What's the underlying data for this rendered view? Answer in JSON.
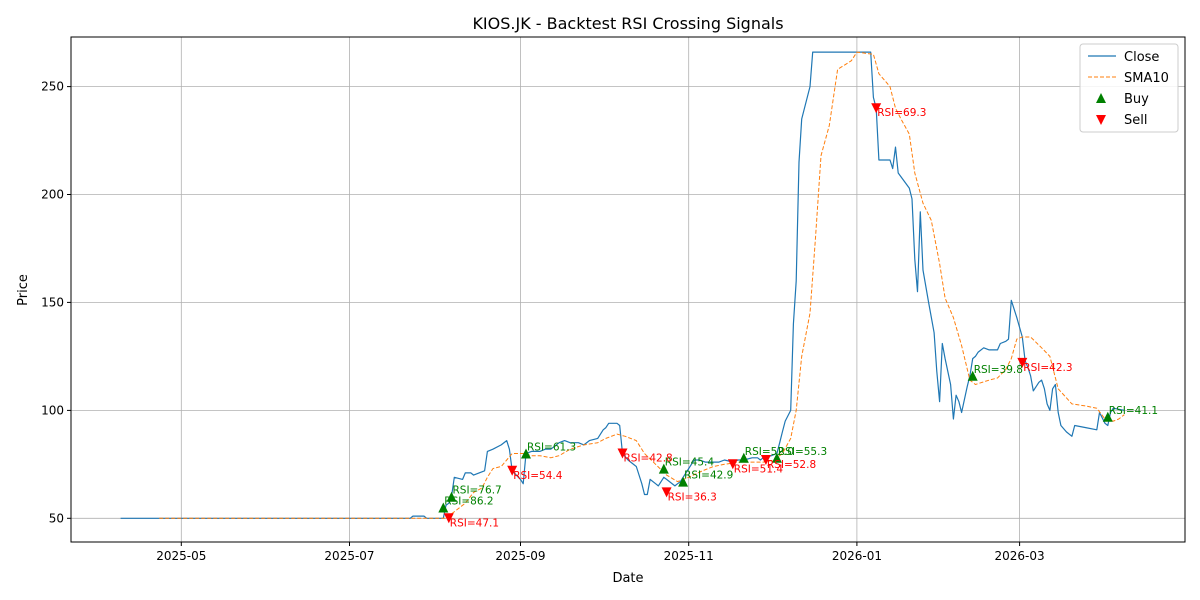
{
  "chart_data": {
    "type": "line",
    "title": "KIOS.JK - Backtest RSI Crossing Signals",
    "xlabel": "Date",
    "ylabel": "Price",
    "xlim": [
      "2025-03-22",
      "2026-04-30"
    ],
    "ylim": [
      39,
      273
    ],
    "grid": true,
    "legend_position": "top-right",
    "x_ticks": [
      "2025-05-01",
      "2025-07-01",
      "2025-09-01",
      "2025-11-01",
      "2026-01-01",
      "2026-03-01"
    ],
    "x_tick_labels": [
      "2025-05",
      "2025-07",
      "2025-09",
      "2025-11",
      "2026-01",
      "2026-03"
    ],
    "y_ticks": [
      50,
      100,
      150,
      200,
      250
    ],
    "y_tick_labels": [
      "50",
      "100",
      "150",
      "200",
      "250"
    ],
    "colors": {
      "close": "#1f77b4",
      "sma": "#ff7f0e",
      "buy": "#008000",
      "sell": "#ff0000",
      "grid": "#b0b0b0"
    },
    "series": [
      {
        "name": "Close",
        "style": "solid",
        "points": [
          [
            "2025-04-09",
            50
          ],
          [
            "2025-07-23",
            50
          ],
          [
            "2025-07-24",
            51
          ],
          [
            "2025-07-28",
            51
          ],
          [
            "2025-07-29",
            50
          ],
          [
            "2025-08-04",
            50
          ],
          [
            "2025-08-05",
            56
          ],
          [
            "2025-08-06",
            57
          ],
          [
            "2025-08-07",
            60
          ],
          [
            "2025-08-08",
            69
          ],
          [
            "2025-08-11",
            68
          ],
          [
            "2025-08-12",
            71
          ],
          [
            "2025-08-14",
            71
          ],
          [
            "2025-08-15",
            70
          ],
          [
            "2025-08-19",
            72
          ],
          [
            "2025-08-20",
            81
          ],
          [
            "2025-08-22",
            82
          ],
          [
            "2025-08-25",
            84
          ],
          [
            "2025-08-27",
            86
          ],
          [
            "2025-08-28",
            82
          ],
          [
            "2025-08-29",
            72
          ],
          [
            "2025-09-01",
            68
          ],
          [
            "2025-09-02",
            66
          ],
          [
            "2025-09-03",
            80
          ],
          [
            "2025-09-05",
            81
          ],
          [
            "2025-09-08",
            81
          ],
          [
            "2025-09-10",
            82
          ],
          [
            "2025-09-12",
            82
          ],
          [
            "2025-09-15",
            85
          ],
          [
            "2025-09-17",
            86
          ],
          [
            "2025-09-19",
            85
          ],
          [
            "2025-09-22",
            85
          ],
          [
            "2025-09-24",
            84
          ],
          [
            "2025-09-26",
            86
          ],
          [
            "2025-09-29",
            87
          ],
          [
            "2025-10-01",
            91
          ],
          [
            "2025-10-02",
            92
          ],
          [
            "2025-10-03",
            94
          ],
          [
            "2025-10-06",
            94
          ],
          [
            "2025-10-07",
            93
          ],
          [
            "2025-10-08",
            80
          ],
          [
            "2025-10-10",
            77
          ],
          [
            "2025-10-13",
            74
          ],
          [
            "2025-10-15",
            66
          ],
          [
            "2025-10-16",
            61
          ],
          [
            "2025-10-17",
            61
          ],
          [
            "2025-10-18",
            68
          ],
          [
            "2025-10-20",
            66
          ],
          [
            "2025-10-21",
            65
          ],
          [
            "2025-10-22",
            67
          ],
          [
            "2025-10-23",
            69
          ],
          [
            "2025-10-24",
            68
          ],
          [
            "2025-10-27",
            65
          ],
          [
            "2025-10-28",
            66
          ],
          [
            "2025-10-29",
            67
          ],
          [
            "2025-10-30",
            69
          ],
          [
            "2025-11-03",
            77
          ],
          [
            "2025-11-05",
            77
          ],
          [
            "2025-11-07",
            76
          ],
          [
            "2025-11-10",
            76
          ],
          [
            "2025-11-12",
            76
          ],
          [
            "2025-11-14",
            77
          ],
          [
            "2025-11-17",
            76
          ],
          [
            "2025-11-19",
            77
          ],
          [
            "2025-11-21",
            77
          ],
          [
            "2025-11-24",
            78
          ],
          [
            "2025-11-26",
            78
          ],
          [
            "2025-11-27",
            77
          ],
          [
            "2025-11-28",
            78
          ],
          [
            "2025-12-01",
            79
          ],
          [
            "2025-12-03",
            80
          ],
          [
            "2025-12-04",
            85
          ],
          [
            "2025-12-05",
            90
          ],
          [
            "2025-12-06",
            95
          ],
          [
            "2025-12-08",
            100
          ],
          [
            "2025-12-09",
            140
          ],
          [
            "2025-12-10",
            160
          ],
          [
            "2025-12-11",
            215
          ],
          [
            "2025-12-12",
            235
          ],
          [
            "2025-12-15",
            250
          ],
          [
            "2025-12-16",
            266
          ],
          [
            "2026-01-06",
            266
          ],
          [
            "2026-01-07",
            245
          ],
          [
            "2026-01-08",
            240
          ],
          [
            "2026-01-09",
            216
          ],
          [
            "2026-01-12",
            216
          ],
          [
            "2026-01-13",
            216
          ],
          [
            "2026-01-14",
            212
          ],
          [
            "2026-01-15",
            222
          ],
          [
            "2026-01-16",
            210
          ],
          [
            "2026-01-20",
            203
          ],
          [
            "2026-01-21",
            198
          ],
          [
            "2026-01-22",
            170
          ],
          [
            "2026-01-23",
            155
          ],
          [
            "2026-01-24",
            192
          ],
          [
            "2026-01-25",
            165
          ],
          [
            "2026-01-27",
            150
          ],
          [
            "2026-01-29",
            136
          ],
          [
            "2026-01-30",
            118
          ],
          [
            "2026-01-31",
            104
          ],
          [
            "2026-02-01",
            131
          ],
          [
            "2026-02-02",
            124
          ],
          [
            "2026-02-04",
            112
          ],
          [
            "2026-02-05",
            96
          ],
          [
            "2026-02-06",
            107
          ],
          [
            "2026-02-07",
            104
          ],
          [
            "2026-02-08",
            99
          ],
          [
            "2026-02-10",
            111
          ],
          [
            "2026-02-11",
            116
          ],
          [
            "2026-02-12",
            124
          ],
          [
            "2026-02-13",
            125
          ],
          [
            "2026-02-14",
            127
          ],
          [
            "2026-02-16",
            129
          ],
          [
            "2026-02-18",
            128
          ],
          [
            "2026-02-21",
            128
          ],
          [
            "2026-02-22",
            131
          ],
          [
            "2026-02-24",
            132
          ],
          [
            "2026-02-25",
            133
          ],
          [
            "2026-02-26",
            151
          ],
          [
            "2026-02-28",
            143
          ],
          [
            "2026-03-02",
            134
          ],
          [
            "2026-03-03",
            123
          ],
          [
            "2026-03-04",
            120
          ],
          [
            "2026-03-05",
            116
          ],
          [
            "2026-03-06",
            109
          ],
          [
            "2026-03-08",
            113
          ],
          [
            "2026-03-09",
            114
          ],
          [
            "2026-03-10",
            110
          ],
          [
            "2026-03-11",
            103
          ],
          [
            "2026-03-12",
            100
          ],
          [
            "2026-03-13",
            110
          ],
          [
            "2026-03-14",
            112
          ],
          [
            "2026-03-15",
            99
          ],
          [
            "2026-03-16",
            93
          ],
          [
            "2026-03-18",
            90
          ],
          [
            "2026-03-20",
            88
          ],
          [
            "2026-03-21",
            93
          ],
          [
            "2026-03-25",
            92
          ],
          [
            "2026-03-29",
            91
          ],
          [
            "2026-03-30",
            99
          ],
          [
            "2026-04-01",
            94
          ],
          [
            "2026-04-02",
            93
          ],
          [
            "2026-04-03",
            99
          ],
          [
            "2026-04-04",
            101
          ],
          [
            "2026-04-08",
            100
          ]
        ]
      },
      {
        "name": "SMA10",
        "style": "dashed",
        "points": [
          [
            "2025-04-23",
            50
          ],
          [
            "2025-08-05",
            50
          ],
          [
            "2025-08-07",
            52
          ],
          [
            "2025-08-12",
            57
          ],
          [
            "2025-08-15",
            62
          ],
          [
            "2025-08-18",
            64
          ],
          [
            "2025-08-20",
            69
          ],
          [
            "2025-08-22",
            73
          ],
          [
            "2025-08-25",
            74
          ],
          [
            "2025-08-27",
            77
          ],
          [
            "2025-08-29",
            80
          ],
          [
            "2025-09-02",
            80
          ],
          [
            "2025-09-05",
            79
          ],
          [
            "2025-09-08",
            79
          ],
          [
            "2025-09-12",
            78
          ],
          [
            "2025-09-15",
            79
          ],
          [
            "2025-09-19",
            82
          ],
          [
            "2025-09-24",
            84
          ],
          [
            "2025-09-29",
            85
          ],
          [
            "2025-10-02",
            87
          ],
          [
            "2025-10-06",
            89
          ],
          [
            "2025-10-09",
            88
          ],
          [
            "2025-10-13",
            86
          ],
          [
            "2025-10-16",
            80
          ],
          [
            "2025-10-20",
            75
          ],
          [
            "2025-10-24",
            70
          ],
          [
            "2025-10-28",
            67
          ],
          [
            "2025-11-01",
            69
          ],
          [
            "2025-11-06",
            72
          ],
          [
            "2025-11-10",
            74
          ],
          [
            "2025-11-14",
            75
          ],
          [
            "2025-11-19",
            76
          ],
          [
            "2025-11-24",
            76
          ],
          [
            "2025-11-28",
            76
          ],
          [
            "2025-12-02",
            77
          ],
          [
            "2025-12-05",
            80
          ],
          [
            "2025-12-08",
            87
          ],
          [
            "2025-12-10",
            100
          ],
          [
            "2025-12-12",
            125
          ],
          [
            "2025-12-15",
            145
          ],
          [
            "2025-12-17",
            180
          ],
          [
            "2025-12-19",
            218
          ],
          [
            "2025-12-22",
            232
          ],
          [
            "2025-12-25",
            258
          ],
          [
            "2025-12-30",
            262
          ],
          [
            "2026-01-01",
            266
          ],
          [
            "2026-01-07",
            265
          ],
          [
            "2026-01-09",
            256
          ],
          [
            "2026-01-13",
            250
          ],
          [
            "2026-01-15",
            240
          ],
          [
            "2026-01-17",
            235
          ],
          [
            "2026-01-20",
            228
          ],
          [
            "2026-01-22",
            210
          ],
          [
            "2026-01-25",
            196
          ],
          [
            "2026-01-28",
            188
          ],
          [
            "2026-01-31",
            168
          ],
          [
            "2026-02-02",
            152
          ],
          [
            "2026-02-05",
            143
          ],
          [
            "2026-02-08",
            130
          ],
          [
            "2026-02-11",
            114
          ],
          [
            "2026-02-13",
            112
          ],
          [
            "2026-02-18",
            114
          ],
          [
            "2026-02-21",
            115
          ],
          [
            "2026-02-24",
            119
          ],
          [
            "2026-02-26",
            124
          ],
          [
            "2026-02-28",
            133
          ],
          [
            "2026-03-02",
            134
          ],
          [
            "2026-03-05",
            134
          ],
          [
            "2026-03-09",
            129
          ],
          [
            "2026-03-12",
            125
          ],
          [
            "2026-03-15",
            110
          ],
          [
            "2026-03-20",
            103
          ],
          [
            "2026-03-25",
            102
          ],
          [
            "2026-03-29",
            101
          ],
          [
            "2026-04-01",
            96
          ],
          [
            "2026-04-04",
            95
          ],
          [
            "2026-04-06",
            96
          ],
          [
            "2026-04-08",
            98
          ]
        ]
      }
    ],
    "buy_signals": [
      {
        "date": "2025-08-04",
        "price": 55,
        "label": "RSI=86.2"
      },
      {
        "date": "2025-08-07",
        "price": 60,
        "label": "RSI=76.7"
      },
      {
        "date": "2025-09-03",
        "price": 80,
        "label": "RSI=61.3"
      },
      {
        "date": "2025-10-23",
        "price": 73,
        "label": "RSI=45.4"
      },
      {
        "date": "2025-10-30",
        "price": 67,
        "label": "RSI=42.9"
      },
      {
        "date": "2025-11-21",
        "price": 78,
        "label": "RSI=52.0"
      },
      {
        "date": "2025-12-03",
        "price": 78,
        "label": "RSI=55.3"
      },
      {
        "date": "2026-02-12",
        "price": 116,
        "label": "RSI=39.8"
      },
      {
        "date": "2026-04-02",
        "price": 97,
        "label": "RSI=41.1"
      }
    ],
    "sell_signals": [
      {
        "date": "2025-08-06",
        "price": 50,
        "label": "RSI=47.1"
      },
      {
        "date": "2025-08-29",
        "price": 72,
        "label": "RSI=54.4"
      },
      {
        "date": "2025-10-08",
        "price": 80,
        "label": "RSI=42.8"
      },
      {
        "date": "2025-10-24",
        "price": 62,
        "label": "RSI=36.3"
      },
      {
        "date": "2025-11-17",
        "price": 75,
        "label": "RSI=51.4"
      },
      {
        "date": "2025-11-29",
        "price": 77,
        "label": "RSI=52.8"
      },
      {
        "date": "2026-01-08",
        "price": 240,
        "label": "RSI=69.3"
      },
      {
        "date": "2026-03-02",
        "price": 122,
        "label": "RSI=42.3"
      }
    ],
    "legend": [
      "Close",
      "SMA10",
      "Buy",
      "Sell"
    ]
  }
}
